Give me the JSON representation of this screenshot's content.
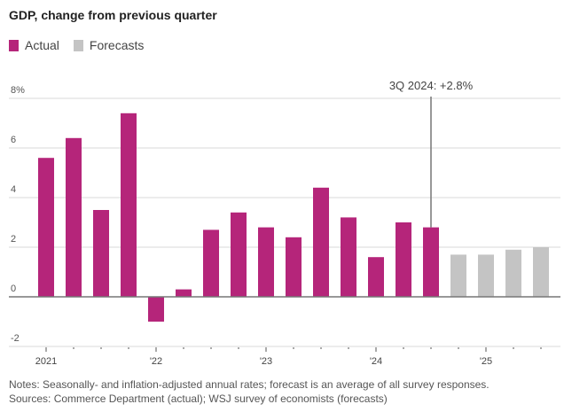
{
  "chart_data": {
    "type": "bar",
    "title": "GDP, change from previous quarter",
    "categories": [
      "1Q 2021",
      "2Q 2021",
      "3Q 2021",
      "4Q 2021",
      "1Q 2022",
      "2Q 2022",
      "3Q 2022",
      "4Q 2022",
      "1Q 2023",
      "2Q 2023",
      "3Q 2023",
      "4Q 2023",
      "1Q 2024",
      "2Q 2024",
      "3Q 2024",
      "4Q 2024",
      "1Q 2025",
      "2Q 2025",
      "3Q 2025"
    ],
    "series": [
      {
        "name": "Actual",
        "color": "#b5257a",
        "values": [
          5.6,
          6.4,
          3.5,
          7.4,
          -1.0,
          0.3,
          2.7,
          3.4,
          2.8,
          2.4,
          4.4,
          3.2,
          1.6,
          3.0,
          2.8,
          null,
          null,
          null,
          null
        ]
      },
      {
        "name": "Forecasts",
        "color": "#c4c4c4",
        "values": [
          null,
          null,
          null,
          null,
          null,
          null,
          null,
          null,
          null,
          null,
          null,
          null,
          null,
          null,
          null,
          1.7,
          1.7,
          1.9,
          2.0
        ]
      }
    ],
    "ylim": [
      -2,
      8
    ],
    "yticks": [
      {
        "v": 8,
        "label": "8%"
      },
      {
        "v": 6,
        "label": "6"
      },
      {
        "v": 4,
        "label": "4"
      },
      {
        "v": 2,
        "label": "2"
      },
      {
        "v": 0,
        "label": "0"
      },
      {
        "v": -2,
        "label": "-2"
      }
    ],
    "xtick_labels": [
      {
        "index": 0,
        "label": "2021"
      },
      {
        "index": 4,
        "label": "'22"
      },
      {
        "index": 8,
        "label": "'23"
      },
      {
        "index": 12,
        "label": "'24"
      },
      {
        "index": 16,
        "label": "'25"
      }
    ],
    "annotation": {
      "index": 14,
      "text": "3Q 2024: +2.8%"
    },
    "grid": true,
    "legend_position": "top-left"
  },
  "notes": {
    "line1": "Notes: Seasonally- and inflation-adjusted annual rates; forecast is an average of all survey responses.",
    "line2": "Sources: Commerce Department (actual); WSJ survey of economists (forecasts)"
  }
}
